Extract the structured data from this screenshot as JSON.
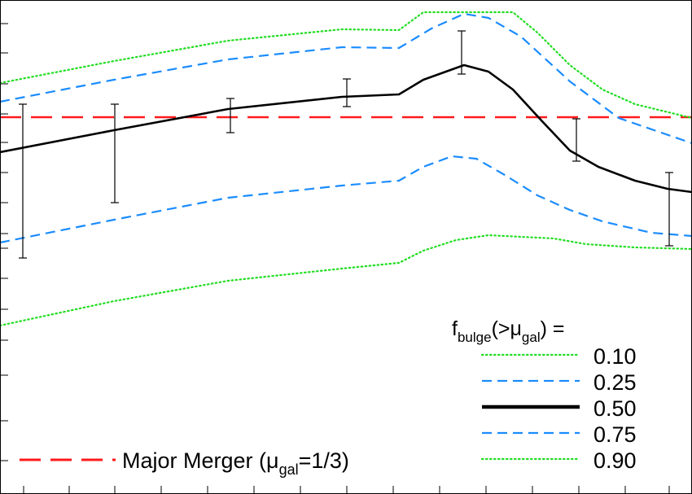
{
  "chart_data": {
    "type": "line",
    "title": "",
    "xlabel": "",
    "ylabel": "",
    "xlim": [
      0,
      850
    ],
    "ylim": [
      607,
      0
    ],
    "grid": false,
    "legend_placement": "bottom-right",
    "legend": {
      "title_base": "f",
      "title_sub": "bulge",
      "title_mid": "(>μ",
      "title_sub2": "gal",
      "title_end": ") =",
      "entries": [
        "0.10",
        "0.25",
        "0.50",
        "0.75",
        "0.90"
      ]
    },
    "reference_line": {
      "y": 144,
      "label_pre": "Major Merger (μ",
      "label_sub": "gal",
      "label_post": "=1/3)",
      "color": "#ff1a1a"
    },
    "series": [
      {
        "name": "0.10",
        "color": "#22dd22",
        "style": "dotted",
        "x": [
          0,
          140,
          280,
          420,
          490,
          520,
          570,
          600,
          630,
          660,
          700,
          740,
          780,
          850
        ],
        "y": [
          102,
          75,
          50,
          36,
          37,
          15,
          15,
          15,
          15,
          40,
          80,
          110,
          128,
          145
        ]
      },
      {
        "name": "0.25",
        "color": "#1a8cff",
        "style": "dashed",
        "x": [
          0,
          140,
          280,
          420,
          490,
          530,
          570,
          600,
          640,
          700,
          760,
          850
        ],
        "y": [
          125,
          98,
          73,
          58,
          59,
          35,
          17,
          22,
          45,
          100,
          145,
          176
        ]
      },
      {
        "name": "0.50",
        "color": "#000000",
        "style": "solid",
        "x": [
          0,
          140,
          280,
          420,
          490,
          520,
          570,
          600,
          630,
          665,
          700,
          735,
          780,
          820,
          850
        ],
        "y": [
          187,
          160,
          134,
          119,
          116,
          98,
          80,
          88,
          110,
          148,
          185,
          205,
          222,
          232,
          236
        ]
      },
      {
        "name": "0.75",
        "color": "#1a8cff",
        "style": "dashed",
        "x": [
          0,
          140,
          280,
          420,
          490,
          520,
          555,
          585,
          620,
          660,
          700,
          740,
          800,
          850
        ],
        "y": [
          298,
          270,
          243,
          228,
          222,
          205,
          192,
          195,
          215,
          240,
          258,
          272,
          286,
          290
        ]
      },
      {
        "name": "0.90",
        "color": "#22dd22",
        "style": "dotted",
        "x": [
          0,
          140,
          280,
          420,
          490,
          520,
          560,
          600,
          680,
          720,
          780,
          850
        ],
        "y": [
          400,
          370,
          345,
          330,
          323,
          308,
          295,
          289,
          293,
          300,
          304,
          306
        ]
      }
    ],
    "error_bars": [
      {
        "x": 28,
        "ymin": 128,
        "ymax": 317
      },
      {
        "x": 141,
        "ymin": 128,
        "ymax": 249
      },
      {
        "x": 283,
        "ymin": 121,
        "ymax": 163
      },
      {
        "x": 426,
        "ymin": 97,
        "ymax": 131
      },
      {
        "x": 567,
        "ymin": 38,
        "ymax": 91
      },
      {
        "x": 708,
        "ymin": 146,
        "ymax": 198
      },
      {
        "x": 822,
        "ymin": 212,
        "ymax": 302
      }
    ],
    "left_ticks": [
      29,
      65,
      103,
      140,
      175,
      212,
      249,
      287,
      305,
      342,
      380,
      418,
      461,
      517,
      566
    ],
    "bottom_ticks": [
      29,
      85,
      141,
      198,
      255,
      312,
      369,
      426,
      483,
      540,
      597,
      654,
      711,
      768,
      822
    ]
  }
}
